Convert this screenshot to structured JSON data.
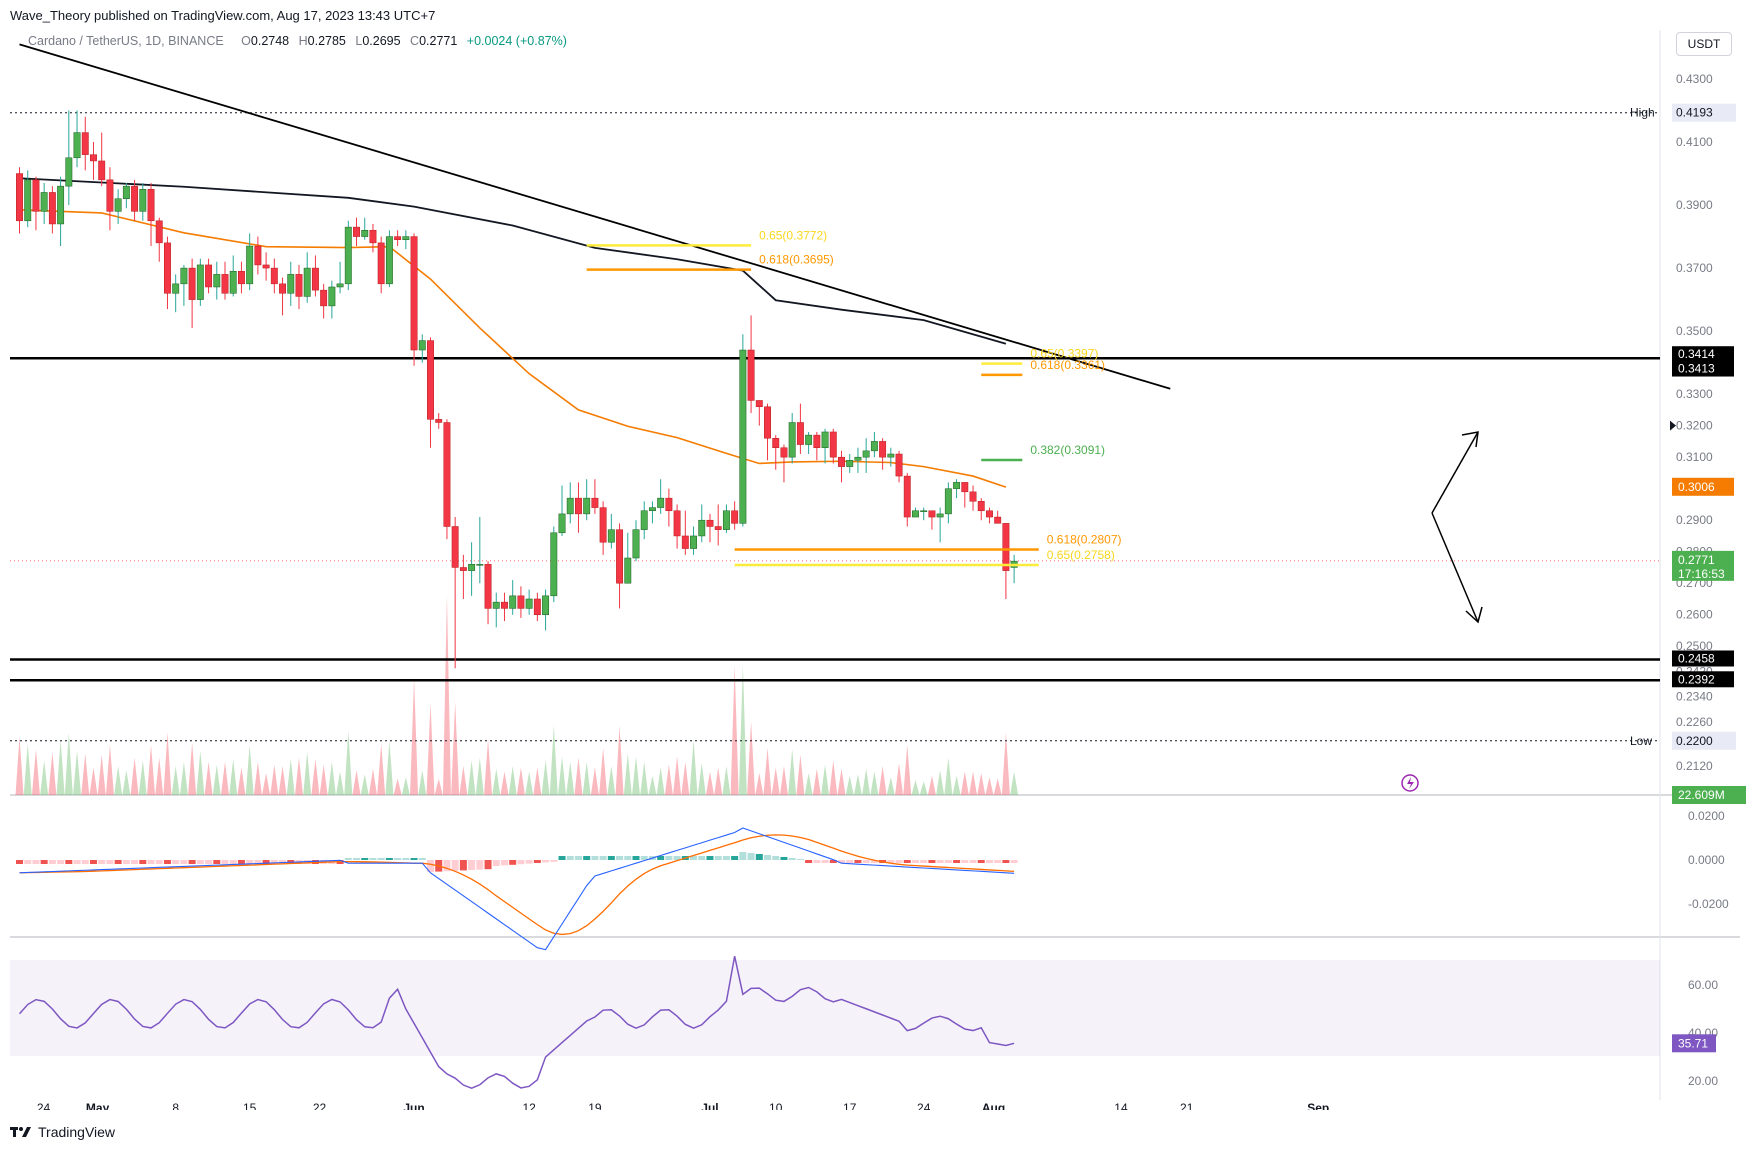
{
  "header": {
    "published": "Wave_Theory published on TradingView.com, Aug 17, 2023 13:43 UTC+7",
    "symbol": "Cardano / TetherUS, 1D, BINANCE",
    "o_label": "O",
    "o": "0.2748",
    "h_label": "H",
    "h": "0.2785",
    "l_label": "L",
    "l": "0.2695",
    "c_label": "C",
    "c": "0.2771",
    "change": "+0.0024 (+0.87%)",
    "currency": "USDT"
  },
  "footer": {
    "brand": "TradingView"
  },
  "colors": {
    "up": "#22ab94",
    "down": "#f23645",
    "up_fill": "#4caf50",
    "ma_orange": "#f57c00",
    "fib_yellow": "#ffeb3b",
    "fib_orange": "#ff9800",
    "fib_green": "#4caf50",
    "macd_line": "#2962ff",
    "signal_line": "#ff6d00",
    "rsi": "#7e57c2"
  },
  "chart_data": {
    "type": "candlestick",
    "price_axis": {
      "ticks": [
        "0.4300",
        "0.4100",
        "0.3900",
        "0.3700",
        "0.3500",
        "0.3300",
        "0.3200",
        "0.3100",
        "0.2900",
        "0.2800",
        "0.2700",
        "0.2600",
        "0.2500",
        "0.2420",
        "0.2340",
        "0.2260",
        "0.2120"
      ],
      "range": [
        0.205,
        0.435
      ]
    },
    "x_ticks": [
      "24",
      "May",
      "8",
      "15",
      "22",
      "Jun",
      "12",
      "19",
      "Jul",
      "10",
      "17",
      "24",
      "Aug",
      "14",
      "21",
      "Sep"
    ],
    "candles": [
      [
        0.4,
        0.385,
        0.402,
        0.381
      ],
      [
        0.385,
        0.398,
        0.401,
        0.383
      ],
      [
        0.398,
        0.388,
        0.399,
        0.382
      ],
      [
        0.388,
        0.394,
        0.397,
        0.384
      ],
      [
        0.394,
        0.384,
        0.396,
        0.381
      ],
      [
        0.384,
        0.396,
        0.399,
        0.377
      ],
      [
        0.396,
        0.405,
        0.42,
        0.39
      ],
      [
        0.405,
        0.413,
        0.42,
        0.402
      ],
      [
        0.413,
        0.406,
        0.418,
        0.401
      ],
      [
        0.406,
        0.404,
        0.41,
        0.398
      ],
      [
        0.404,
        0.398,
        0.413,
        0.396
      ],
      [
        0.398,
        0.388,
        0.402,
        0.382
      ],
      [
        0.388,
        0.392,
        0.395,
        0.384
      ],
      [
        0.392,
        0.396,
        0.397,
        0.389
      ],
      [
        0.396,
        0.388,
        0.398,
        0.385
      ],
      [
        0.388,
        0.395,
        0.397,
        0.385
      ],
      [
        0.395,
        0.385,
        0.397,
        0.377
      ],
      [
        0.385,
        0.378,
        0.386,
        0.372
      ],
      [
        0.378,
        0.362,
        0.38,
        0.357
      ],
      [
        0.362,
        0.365,
        0.368,
        0.356
      ],
      [
        0.365,
        0.37,
        0.371,
        0.358
      ],
      [
        0.37,
        0.36,
        0.373,
        0.351
      ],
      [
        0.36,
        0.371,
        0.373,
        0.358
      ],
      [
        0.371,
        0.364,
        0.373,
        0.362
      ],
      [
        0.364,
        0.368,
        0.372,
        0.36
      ],
      [
        0.368,
        0.362,
        0.372,
        0.36
      ],
      [
        0.362,
        0.369,
        0.374,
        0.361
      ],
      [
        0.369,
        0.365,
        0.372,
        0.362
      ],
      [
        0.365,
        0.377,
        0.381,
        0.363
      ],
      [
        0.377,
        0.371,
        0.38,
        0.368
      ],
      [
        0.371,
        0.37,
        0.375,
        0.366
      ],
      [
        0.37,
        0.365,
        0.373,
        0.362
      ],
      [
        0.365,
        0.362,
        0.367,
        0.355
      ],
      [
        0.362,
        0.368,
        0.372,
        0.358
      ],
      [
        0.368,
        0.361,
        0.371,
        0.357
      ],
      [
        0.361,
        0.37,
        0.375,
        0.359
      ],
      [
        0.37,
        0.363,
        0.374,
        0.361
      ],
      [
        0.363,
        0.358,
        0.365,
        0.354
      ],
      [
        0.358,
        0.364,
        0.366,
        0.354
      ],
      [
        0.364,
        0.365,
        0.372,
        0.362
      ],
      [
        0.365,
        0.383,
        0.385,
        0.363
      ],
      [
        0.383,
        0.38,
        0.386,
        0.377
      ],
      [
        0.38,
        0.382,
        0.386,
        0.379
      ],
      [
        0.382,
        0.378,
        0.384,
        0.375
      ],
      [
        0.378,
        0.365,
        0.38,
        0.362
      ],
      [
        0.365,
        0.38,
        0.382,
        0.364
      ],
      [
        0.38,
        0.379,
        0.382,
        0.377
      ],
      [
        0.379,
        0.38,
        0.382,
        0.376
      ],
      [
        0.38,
        0.344,
        0.381,
        0.339
      ],
      [
        0.344,
        0.347,
        0.349,
        0.34
      ],
      [
        0.347,
        0.322,
        0.348,
        0.313
      ],
      [
        0.322,
        0.321,
        0.324,
        0.319
      ],
      [
        0.321,
        0.288,
        0.322,
        0.284
      ],
      [
        0.288,
        0.275,
        0.291,
        0.243
      ],
      [
        0.275,
        0.274,
        0.279,
        0.265
      ],
      [
        0.274,
        0.276,
        0.283,
        0.266
      ],
      [
        0.276,
        0.276,
        0.291,
        0.27
      ],
      [
        0.276,
        0.262,
        0.277,
        0.257
      ],
      [
        0.262,
        0.264,
        0.267,
        0.256
      ],
      [
        0.264,
        0.262,
        0.267,
        0.258
      ],
      [
        0.262,
        0.266,
        0.271,
        0.26
      ],
      [
        0.266,
        0.262,
        0.269,
        0.259
      ],
      [
        0.262,
        0.265,
        0.268,
        0.26
      ],
      [
        0.265,
        0.26,
        0.267,
        0.258
      ],
      [
        0.26,
        0.266,
        0.268,
        0.255
      ],
      [
        0.266,
        0.286,
        0.288,
        0.264
      ],
      [
        0.286,
        0.292,
        0.301,
        0.285
      ],
      [
        0.292,
        0.297,
        0.302,
        0.289
      ],
      [
        0.297,
        0.292,
        0.302,
        0.286
      ],
      [
        0.292,
        0.297,
        0.303,
        0.29
      ],
      [
        0.297,
        0.294,
        0.303,
        0.292
      ],
      [
        0.294,
        0.283,
        0.296,
        0.279
      ],
      [
        0.283,
        0.287,
        0.292,
        0.281
      ],
      [
        0.287,
        0.27,
        0.289,
        0.262
      ],
      [
        0.27,
        0.278,
        0.286,
        0.27
      ],
      [
        0.278,
        0.287,
        0.29,
        0.277
      ],
      [
        0.287,
        0.293,
        0.296,
        0.284
      ],
      [
        0.293,
        0.294,
        0.296,
        0.289
      ],
      [
        0.294,
        0.297,
        0.303,
        0.292
      ],
      [
        0.297,
        0.293,
        0.3,
        0.288
      ],
      [
        0.293,
        0.285,
        0.295,
        0.281
      ],
      [
        0.285,
        0.281,
        0.293,
        0.279
      ],
      [
        0.281,
        0.285,
        0.288,
        0.279
      ],
      [
        0.285,
        0.29,
        0.295,
        0.283
      ],
      [
        0.29,
        0.288,
        0.292,
        0.283
      ],
      [
        0.288,
        0.287,
        0.295,
        0.282
      ],
      [
        0.287,
        0.293,
        0.295,
        0.286
      ],
      [
        0.293,
        0.289,
        0.296,
        0.287
      ],
      [
        0.289,
        0.344,
        0.349,
        0.288
      ],
      [
        0.344,
        0.328,
        0.355,
        0.324
      ],
      [
        0.328,
        0.326,
        0.328,
        0.32
      ],
      [
        0.326,
        0.316,
        0.327,
        0.309
      ],
      [
        0.316,
        0.313,
        0.317,
        0.306
      ],
      [
        0.313,
        0.31,
        0.314,
        0.302
      ],
      [
        0.31,
        0.321,
        0.324,
        0.308
      ],
      [
        0.321,
        0.314,
        0.327,
        0.311
      ],
      [
        0.314,
        0.317,
        0.318,
        0.311
      ],
      [
        0.317,
        0.313,
        0.318,
        0.309
      ],
      [
        0.313,
        0.318,
        0.319,
        0.308
      ],
      [
        0.318,
        0.31,
        0.319,
        0.308
      ],
      [
        0.31,
        0.307,
        0.312,
        0.302
      ],
      [
        0.307,
        0.309,
        0.311,
        0.305
      ],
      [
        0.309,
        0.31,
        0.313,
        0.305
      ],
      [
        0.31,
        0.312,
        0.316,
        0.305
      ],
      [
        0.312,
        0.315,
        0.318,
        0.31
      ],
      [
        0.315,
        0.31,
        0.316,
        0.306
      ],
      [
        0.31,
        0.311,
        0.313,
        0.307
      ],
      [
        0.311,
        0.304,
        0.312,
        0.302
      ],
      [
        0.304,
        0.291,
        0.305,
        0.288
      ],
      [
        0.291,
        0.293,
        0.294,
        0.291
      ],
      [
        0.293,
        0.293,
        0.294,
        0.29
      ],
      [
        0.293,
        0.291,
        0.293,
        0.287
      ],
      [
        0.291,
        0.292,
        0.294,
        0.283
      ],
      [
        0.292,
        0.3,
        0.302,
        0.289
      ],
      [
        0.3,
        0.302,
        0.303,
        0.297
      ],
      [
        0.302,
        0.299,
        0.302,
        0.294
      ],
      [
        0.299,
        0.296,
        0.301,
        0.293
      ],
      [
        0.296,
        0.293,
        0.297,
        0.29
      ],
      [
        0.293,
        0.291,
        0.294,
        0.289
      ],
      [
        0.291,
        0.289,
        0.293,
        0.289
      ],
      [
        0.289,
        0.274,
        0.289,
        0.265
      ],
      [
        0.275,
        0.277,
        0.279,
        0.27
      ]
    ],
    "ma_orange": [
      [
        0,
        0.3885
      ],
      [
        10,
        0.3875
      ],
      [
        20,
        0.3812
      ],
      [
        30,
        0.3768
      ],
      [
        40,
        0.3765
      ],
      [
        45,
        0.3768
      ],
      [
        50,
        0.3665
      ],
      [
        56,
        0.351
      ],
      [
        62,
        0.3365
      ],
      [
        68,
        0.325
      ],
      [
        74,
        0.3198
      ],
      [
        80,
        0.3162
      ],
      [
        86,
        0.3112
      ],
      [
        90,
        0.308
      ],
      [
        94,
        0.3085
      ],
      [
        100,
        0.3087
      ],
      [
        106,
        0.3083
      ],
      [
        110,
        0.307
      ],
      [
        116,
        0.304
      ],
      [
        120,
        0.3005
      ]
    ],
    "ma_black": [
      [
        0,
        0.3985
      ],
      [
        20,
        0.3958
      ],
      [
        40,
        0.3923
      ],
      [
        48,
        0.3895
      ],
      [
        60,
        0.3835
      ],
      [
        70,
        0.3764
      ],
      [
        80,
        0.3728
      ],
      [
        88,
        0.3692
      ],
      [
        92,
        0.3598
      ],
      [
        100,
        0.3568
      ],
      [
        110,
        0.3535
      ],
      [
        120,
        0.346
      ]
    ],
    "trendline": [
      [
        0,
        0.441
      ],
      [
        140,
        0.3317
      ]
    ],
    "levels": [
      {
        "label": "High",
        "value": "0.4193"
      },
      {
        "label": "Low",
        "value": "0.2200"
      }
    ],
    "horizontal_lines": [
      "0.3414",
      "0.3413",
      "0.2458",
      "0.2392"
    ],
    "current_price": "0.2771",
    "countdown": "17:16:53",
    "ma_price_label": "0.3006",
    "fibs": [
      {
        "text": "0.65(0.3772)",
        "value": 0.3772,
        "x0": 69,
        "x1": 89,
        "color": "#ffeb3b"
      },
      {
        "text": "0.618(0.3695)",
        "value": 0.3695,
        "x0": 69,
        "x1": 89,
        "color": "#ff9800"
      },
      {
        "text": "0.65(0.3397)",
        "value": 0.3397,
        "x0": 117,
        "x1": 122,
        "color": "#ffeb3b"
      },
      {
        "text": "0.618(0.3361)",
        "value": 0.3361,
        "x0": 117,
        "x1": 122,
        "color": "#ff9800"
      },
      {
        "text": "0.382(0.3091)",
        "value": 0.3091,
        "x0": 117,
        "x1": 122,
        "color": "#4caf50"
      },
      {
        "text": "0.618(0.2807)",
        "value": 0.2807,
        "x0": 87,
        "x1": 124,
        "color": "#ff9800"
      },
      {
        "text": "0.65(0.2758)",
        "value": 0.2758,
        "x0": 87,
        "x1": 124,
        "color": "#ffeb3b"
      }
    ],
    "volume_label": "22.609M",
    "macd_axis": [
      "0.0200",
      "0.0000",
      "-0.0200"
    ],
    "rsi_axis": [
      "60.00",
      "40.00",
      "20.00"
    ],
    "rsi_value": "35.71"
  }
}
